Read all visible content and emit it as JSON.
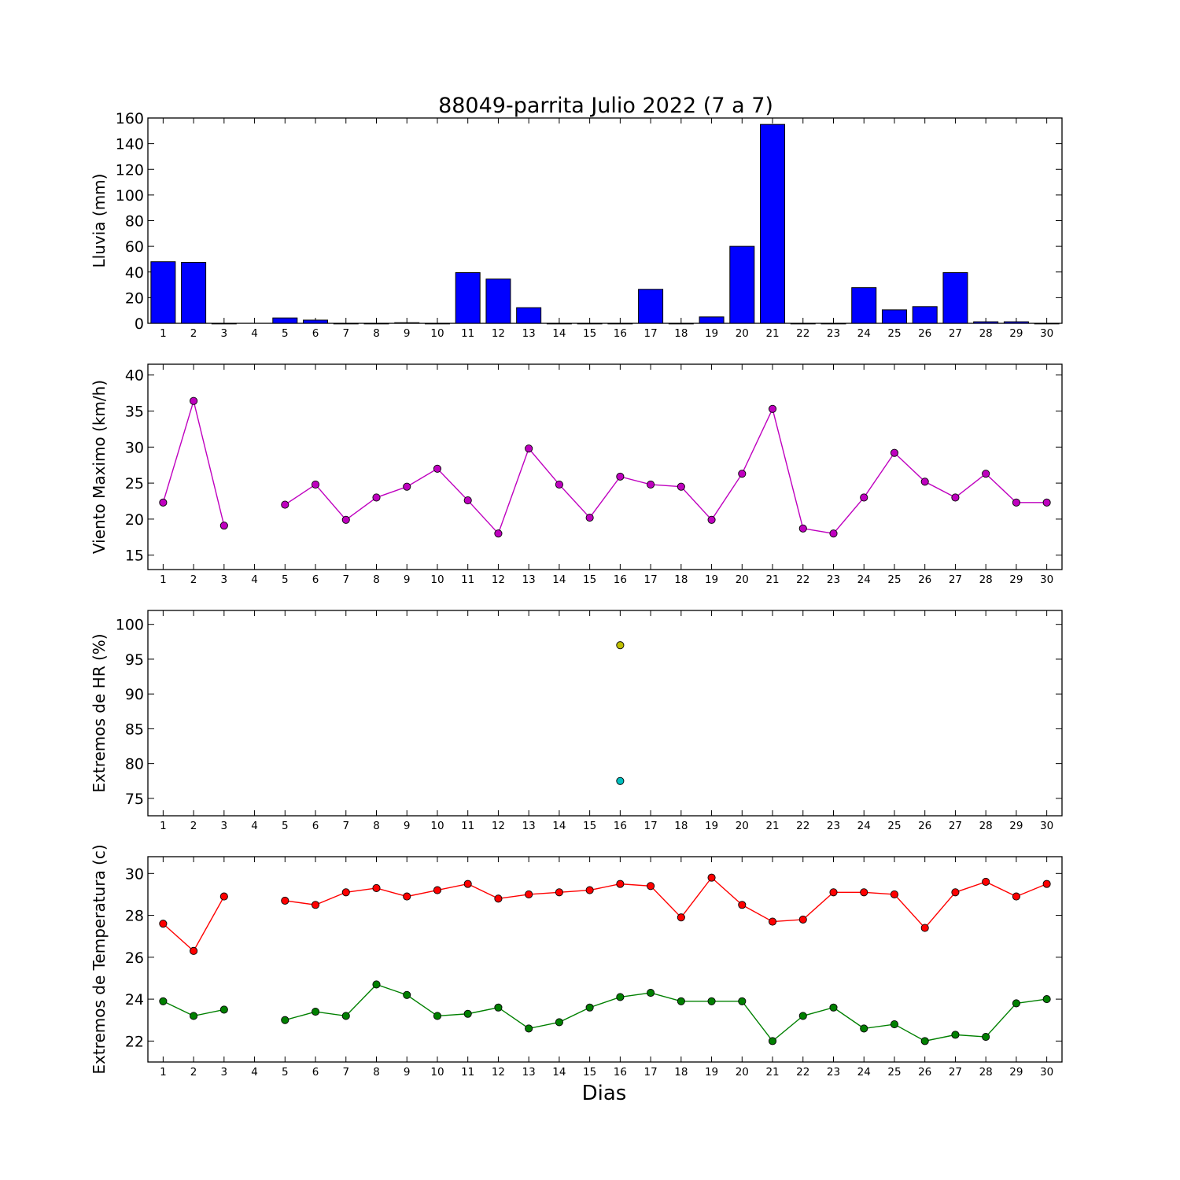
{
  "figure": {
    "title": "88049-parrita Julio 2022  (7 a 7)",
    "xlabel": "Dias"
  },
  "chart_data": [
    {
      "type": "bar",
      "name": "rain",
      "ylabel": "Lluvia (mm)",
      "ylim": [
        0,
        160
      ],
      "yticks": [
        0,
        20,
        40,
        60,
        80,
        100,
        120,
        140,
        160
      ],
      "categories": [
        1,
        2,
        3,
        4,
        5,
        6,
        7,
        8,
        9,
        10,
        11,
        12,
        13,
        14,
        15,
        16,
        17,
        18,
        19,
        20,
        21,
        22,
        23,
        24,
        25,
        26,
        27,
        28,
        29,
        30
      ],
      "series": [
        {
          "color": "#0000ff",
          "values": [
            48,
            47.5,
            0,
            null,
            4.2,
            2.5,
            0,
            0,
            0.5,
            0,
            39.5,
            34.5,
            12.2,
            0,
            0,
            0,
            26.5,
            0,
            5,
            60,
            155,
            0,
            0,
            27.8,
            10.5,
            13,
            39.5,
            1.2,
            1.2,
            0
          ]
        }
      ],
      "grid": false
    },
    {
      "type": "line",
      "name": "wind",
      "ylabel": "Viento Maximo (km/h)",
      "ylim": [
        13,
        41.5
      ],
      "yticks": [
        15,
        20,
        25,
        30,
        35,
        40
      ],
      "x": [
        1,
        2,
        3,
        4,
        5,
        6,
        7,
        8,
        9,
        10,
        11,
        12,
        13,
        14,
        15,
        16,
        17,
        18,
        19,
        20,
        21,
        22,
        23,
        24,
        25,
        26,
        27,
        28,
        29,
        30
      ],
      "series": [
        {
          "color": "#bf00bf",
          "values": [
            22.3,
            36.4,
            19.1,
            null,
            22,
            24.8,
            19.9,
            23,
            24.5,
            27,
            22.6,
            18,
            29.8,
            24.8,
            20.2,
            25.9,
            24.8,
            24.5,
            19.9,
            26.3,
            35.3,
            18.7,
            18,
            23,
            29.2,
            25.2,
            23,
            26.3,
            22.3,
            22.3
          ]
        }
      ],
      "grid": false
    },
    {
      "type": "scatter",
      "name": "humidity",
      "ylabel": "Extremos de HR (%)",
      "ylim": [
        72.5,
        102
      ],
      "yticks": [
        75,
        80,
        85,
        90,
        95,
        100
      ],
      "x": [
        1,
        2,
        3,
        4,
        5,
        6,
        7,
        8,
        9,
        10,
        11,
        12,
        13,
        14,
        15,
        16,
        17,
        18,
        19,
        20,
        21,
        22,
        23,
        24,
        25,
        26,
        27,
        28,
        29,
        30
      ],
      "series": [
        {
          "color": "#bfbf00",
          "values": [
            null,
            null,
            null,
            null,
            null,
            null,
            null,
            null,
            null,
            null,
            null,
            null,
            null,
            null,
            null,
            97,
            null,
            null,
            null,
            null,
            null,
            null,
            null,
            null,
            null,
            null,
            null,
            null,
            null,
            null
          ]
        },
        {
          "color": "#00bfbf",
          "values": [
            null,
            null,
            null,
            null,
            null,
            null,
            null,
            null,
            null,
            null,
            null,
            null,
            null,
            null,
            null,
            77.5,
            null,
            null,
            null,
            null,
            null,
            null,
            null,
            null,
            null,
            null,
            null,
            null,
            null,
            null
          ]
        }
      ],
      "grid": false
    },
    {
      "type": "line",
      "name": "temperature",
      "ylabel": "Extremos de Temperatura (c)",
      "ylim": [
        21,
        30.8
      ],
      "yticks": [
        22,
        24,
        26,
        28,
        30
      ],
      "x": [
        1,
        2,
        3,
        4,
        5,
        6,
        7,
        8,
        9,
        10,
        11,
        12,
        13,
        14,
        15,
        16,
        17,
        18,
        19,
        20,
        21,
        22,
        23,
        24,
        25,
        26,
        27,
        28,
        29,
        30
      ],
      "series": [
        {
          "color": "#ff0000",
          "values": [
            27.6,
            26.3,
            28.9,
            null,
            28.7,
            28.5,
            29.1,
            29.3,
            28.9,
            29.2,
            29.5,
            28.8,
            29,
            29.1,
            29.2,
            29.5,
            29.4,
            27.9,
            29.8,
            28.5,
            27.7,
            27.8,
            29.1,
            29.1,
            29,
            27.4,
            29.1,
            29.6,
            28.9,
            29.5
          ]
        },
        {
          "color": "#008000",
          "values": [
            23.9,
            23.2,
            23.5,
            null,
            23,
            23.4,
            23.2,
            24.7,
            24.2,
            23.2,
            23.3,
            23.6,
            22.6,
            22.9,
            23.6,
            24.1,
            24.3,
            23.9,
            23.9,
            23.9,
            22,
            23.2,
            23.6,
            22.6,
            22.8,
            22,
            22.3,
            22.2,
            23.8,
            24
          ]
        }
      ],
      "grid": false
    }
  ]
}
